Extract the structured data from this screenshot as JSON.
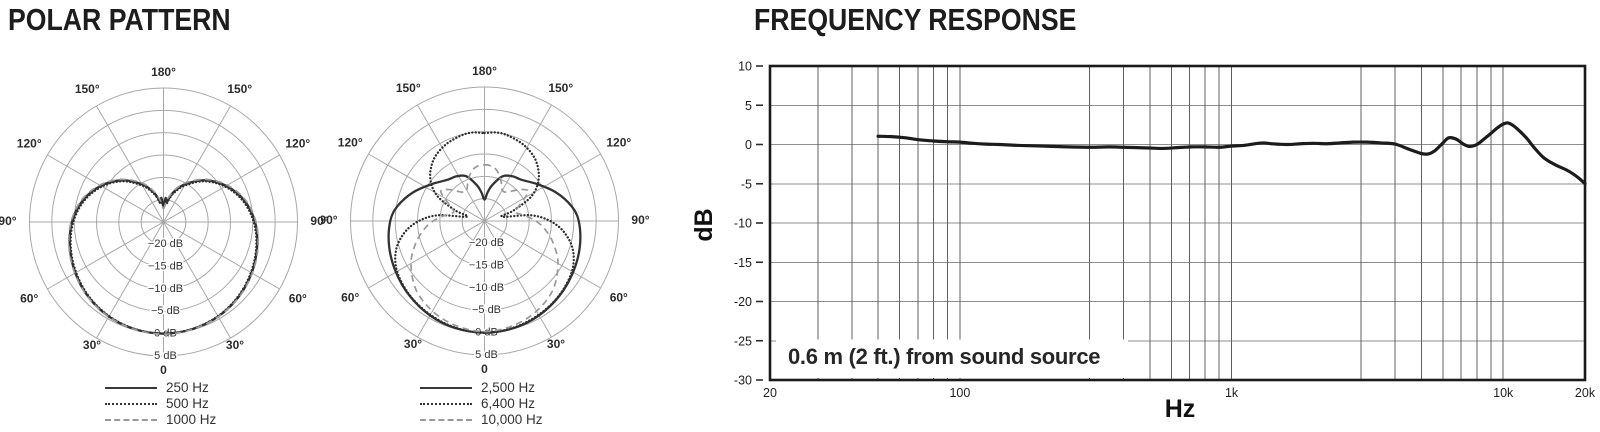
{
  "polar_section": {
    "title": "POLAR PATTERN"
  },
  "frequency_response_section": {
    "title": "FREQUENCY RESPONSE"
  },
  "colors": {
    "curve_dark": "#2e2e2e",
    "curve_gray": "#999999",
    "grid_polar": "#a8a8a8",
    "grid_fr": "#606060",
    "frame": "#1b1b1b"
  },
  "chart_data": [
    {
      "type": "polar",
      "name": "polar-pattern-low-frequencies",
      "zero_angle_position": "bottom",
      "center_db": -25,
      "rings_db": [
        -20,
        -15,
        -10,
        -5,
        0,
        5
      ],
      "ring_labels": [
        "−20 dB",
        "−15 dB",
        "−10 dB",
        "−5 dB",
        "0 dB",
        "5 dB"
      ],
      "angle_labels": [
        {
          "angle": 180,
          "label": "180°"
        },
        {
          "angle": 150,
          "label": "150°"
        },
        {
          "angle": 120,
          "label": "120°"
        },
        {
          "angle": 90,
          "label": "90°"
        },
        {
          "angle": 60,
          "label": "60°"
        },
        {
          "angle": 30,
          "label": "30°"
        },
        {
          "angle": 0,
          "label": "0"
        }
      ],
      "curves": [
        {
          "name": "250 Hz",
          "style": "solid",
          "color": "#333333",
          "points_deg_db": [
            [
              0,
              0
            ],
            [
              15,
              -0.15
            ],
            [
              30,
              -0.55
            ],
            [
              45,
              -1.25
            ],
            [
              60,
              -2.2
            ],
            [
              75,
              -3.3
            ],
            [
              90,
              -4.5
            ],
            [
              105,
              -6.3
            ],
            [
              120,
              -8.8
            ],
            [
              135,
              -11.8
            ],
            [
              150,
              -15.2
            ],
            [
              160,
              -17.6
            ],
            [
              166,
              -19.2
            ],
            [
              171,
              -20.6
            ],
            [
              175,
              -19.6
            ],
            [
              180,
              -21.5
            ]
          ]
        },
        {
          "name": "500 Hz",
          "style": "dotted",
          "color": "#2e2e2e",
          "points_deg_db": [
            [
              0,
              -0.05
            ],
            [
              15,
              -0.2
            ],
            [
              30,
              -0.65
            ],
            [
              45,
              -1.4
            ],
            [
              60,
              -2.4
            ],
            [
              75,
              -3.5
            ],
            [
              90,
              -4.8
            ],
            [
              105,
              -6.6
            ],
            [
              120,
              -9.1
            ],
            [
              135,
              -12.1
            ],
            [
              150,
              -15.6
            ],
            [
              160,
              -18.0
            ],
            [
              166,
              -19.6
            ],
            [
              171,
              -20.9
            ],
            [
              175,
              -20.0
            ],
            [
              180,
              -21.0
            ]
          ]
        },
        {
          "name": "1000 Hz",
          "style": "dashed",
          "color": "#999999",
          "points_deg_db": [
            [
              0,
              0.1
            ],
            [
              15,
              -0.1
            ],
            [
              30,
              -0.5
            ],
            [
              45,
              -1.15
            ],
            [
              60,
              -2.05
            ],
            [
              75,
              -3.1
            ],
            [
              90,
              -4.3
            ],
            [
              105,
              -6.0
            ],
            [
              120,
              -8.5
            ],
            [
              135,
              -11.5
            ],
            [
              150,
              -14.8
            ],
            [
              160,
              -17.2
            ],
            [
              166,
              -18.8
            ],
            [
              172,
              -20.2
            ],
            [
              180,
              -22.0
            ]
          ]
        }
      ]
    },
    {
      "type": "polar",
      "name": "polar-pattern-high-frequencies",
      "zero_angle_position": "bottom",
      "center_db": -25,
      "rings_db": [
        -20,
        -15,
        -10,
        -5,
        0,
        5
      ],
      "ring_labels": [
        "−20 dB",
        "−15 dB",
        "−10 dB",
        "−5 dB",
        "0 dB",
        "5 dB"
      ],
      "angle_labels": [
        {
          "angle": 180,
          "label": "180°"
        },
        {
          "angle": 150,
          "label": "150°"
        },
        {
          "angle": 120,
          "label": "120°"
        },
        {
          "angle": 90,
          "label": "90°"
        },
        {
          "angle": 60,
          "label": "60°"
        },
        {
          "angle": 30,
          "label": "30°"
        },
        {
          "angle": 0,
          "label": "0"
        }
      ],
      "curves": [
        {
          "name": "2,500 Hz",
          "style": "solid",
          "color": "#333333",
          "points_deg_db": [
            [
              0,
              0
            ],
            [
              15,
              -0.15
            ],
            [
              30,
              -0.6
            ],
            [
              45,
              -1.3
            ],
            [
              60,
              -2.1
            ],
            [
              75,
              -2.9
            ],
            [
              90,
              -3.9
            ],
            [
              100,
              -5.3
            ],
            [
              112,
              -7.8
            ],
            [
              125,
              -10.6
            ],
            [
              138,
              -12.6
            ],
            [
              148,
              -13.2
            ],
            [
              158,
              -14.2
            ],
            [
              168,
              -16.8
            ],
            [
              174,
              -18.6
            ],
            [
              180,
              -20.2
            ]
          ]
        },
        {
          "name": "6,400 Hz",
          "style": "dotted",
          "color": "#2e2e2e",
          "points_deg_db": [
            [
              0,
              0
            ],
            [
              15,
              -0.25
            ],
            [
              30,
              -0.75
            ],
            [
              45,
              -1.4
            ],
            [
              60,
              -2.4
            ],
            [
              72,
              -4.2
            ],
            [
              82,
              -7.0
            ],
            [
              90,
              -10.3
            ],
            [
              97,
              -14.5
            ],
            [
              104,
              -21.0
            ],
            [
              110,
              -18.0
            ],
            [
              118,
              -13.0
            ],
            [
              128,
              -9.6
            ],
            [
              140,
              -7.2
            ],
            [
              152,
              -5.9
            ],
            [
              164,
              -5.2
            ],
            [
              172,
              -5.0
            ],
            [
              180,
              -5.3
            ]
          ]
        },
        {
          "name": "10,000 Hz",
          "style": "dashed",
          "color": "#999999",
          "points_deg_db": [
            [
              0,
              -0.25
            ],
            [
              15,
              -0.7
            ],
            [
              30,
              -1.7
            ],
            [
              45,
              -3.3
            ],
            [
              60,
              -6.0
            ],
            [
              72,
              -8.8
            ],
            [
              82,
              -11.3
            ],
            [
              90,
              -13.5
            ],
            [
              98,
              -16.0
            ],
            [
              106,
              -17.8
            ],
            [
              114,
              -16.5
            ],
            [
              124,
              -13.2
            ],
            [
              132,
              -14.5
            ],
            [
              142,
              -16.8
            ],
            [
              150,
              -17.0
            ],
            [
              158,
              -15.2
            ],
            [
              166,
              -13.4
            ],
            [
              173,
              -12.6
            ],
            [
              180,
              -12.4
            ]
          ]
        }
      ]
    },
    {
      "type": "line",
      "name": "frequency-response",
      "xlabel": "Hz",
      "ylabel": "dB",
      "x_scale": "log",
      "xlim": [
        20,
        20000
      ],
      "ylim": [
        -30,
        10
      ],
      "yticks": [
        10,
        5,
        0,
        -5,
        -10,
        -15,
        -20,
        -25,
        -30
      ],
      "xticks": [
        {
          "value": 20,
          "label": "20"
        },
        {
          "value": 100,
          "label": "100"
        },
        {
          "value": 1000,
          "label": "1k"
        },
        {
          "value": 10000,
          "label": "10k"
        },
        {
          "value": 20000,
          "label": "20k"
        }
      ],
      "annotation": "0.6 m (2 ft.) from sound source",
      "series": [
        {
          "name": "on-axis response",
          "points_hz_db": [
            [
              50,
              1.05
            ],
            [
              56,
              1.0
            ],
            [
              63,
              0.85
            ],
            [
              71,
              0.6
            ],
            [
              80,
              0.45
            ],
            [
              90,
              0.35
            ],
            [
              100,
              0.3
            ],
            [
              112,
              0.15
            ],
            [
              125,
              0.05
            ],
            [
              140,
              0.0
            ],
            [
              160,
              -0.1
            ],
            [
              180,
              -0.15
            ],
            [
              200,
              -0.2
            ],
            [
              250,
              -0.3
            ],
            [
              315,
              -0.35
            ],
            [
              355,
              -0.3
            ],
            [
              400,
              -0.35
            ],
            [
              450,
              -0.4
            ],
            [
              500,
              -0.45
            ],
            [
              560,
              -0.5
            ],
            [
              630,
              -0.4
            ],
            [
              710,
              -0.3
            ],
            [
              800,
              -0.3
            ],
            [
              900,
              -0.35
            ],
            [
              1000,
              -0.2
            ],
            [
              1120,
              -0.1
            ],
            [
              1250,
              0.15
            ],
            [
              1320,
              0.2
            ],
            [
              1400,
              0.1
            ],
            [
              1600,
              0.0
            ],
            [
              1800,
              0.1
            ],
            [
              2000,
              0.15
            ],
            [
              2240,
              0.1
            ],
            [
              2500,
              0.2
            ],
            [
              2800,
              0.3
            ],
            [
              3150,
              0.3
            ],
            [
              3550,
              0.2
            ],
            [
              4000,
              0.05
            ],
            [
              4500,
              -0.6
            ],
            [
              5000,
              -1.15
            ],
            [
              5300,
              -1.2
            ],
            [
              5600,
              -0.8
            ],
            [
              6000,
              0.2
            ],
            [
              6300,
              0.85
            ],
            [
              6700,
              0.7
            ],
            [
              7100,
              0.1
            ],
            [
              7500,
              -0.25
            ],
            [
              8000,
              0.0
            ],
            [
              8500,
              0.7
            ],
            [
              9000,
              1.4
            ],
            [
              9500,
              2.1
            ],
            [
              10000,
              2.6
            ],
            [
              10400,
              2.75
            ],
            [
              10900,
              2.4
            ],
            [
              11500,
              1.7
            ],
            [
              12200,
              0.8
            ],
            [
              13000,
              -0.4
            ],
            [
              14000,
              -1.6
            ],
            [
              15000,
              -2.3
            ],
            [
              16000,
              -2.8
            ],
            [
              17000,
              -3.2
            ],
            [
              18000,
              -3.7
            ],
            [
              19000,
              -4.3
            ],
            [
              20000,
              -5.0
            ]
          ]
        }
      ]
    }
  ]
}
